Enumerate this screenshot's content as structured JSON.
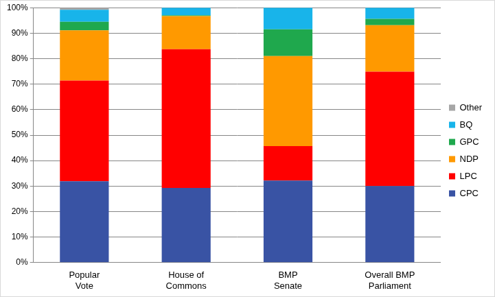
{
  "chart_data": {
    "type": "bar",
    "categories": [
      "Popular Vote",
      "House of Commons",
      "BMP Senate",
      "Overall BMP Parliament"
    ],
    "series": [
      {
        "name": "CPC",
        "color": "#3953A4",
        "values": [
          31.9,
          29.3,
          32.2,
          30.0
        ]
      },
      {
        "name": "LPC",
        "color": "#FF0000",
        "values": [
          39.5,
          54.4,
          13.5,
          44.9
        ]
      },
      {
        "name": "NDP",
        "color": "#FF9900",
        "values": [
          19.7,
          13.0,
          35.3,
          18.2
        ]
      },
      {
        "name": "GPC",
        "color": "#1FA84D",
        "values": [
          3.4,
          0.3,
          10.5,
          2.5
        ]
      },
      {
        "name": "BQ",
        "color": "#18B4EA",
        "values": [
          4.7,
          3.0,
          8.5,
          4.4
        ]
      },
      {
        "name": "Other",
        "color": "#A6A6A6",
        "values": [
          0.8,
          0,
          0,
          0
        ]
      }
    ],
    "ylim": [
      0,
      100
    ],
    "yticks": [
      {
        "value": 0,
        "label": "0%"
      },
      {
        "value": 10,
        "label": "10%"
      },
      {
        "value": 20,
        "label": "20%"
      },
      {
        "value": 30,
        "label": "30%"
      },
      {
        "value": 40,
        "label": "40%"
      },
      {
        "value": 50,
        "label": "50%"
      },
      {
        "value": 60,
        "label": "60%"
      },
      {
        "value": 70,
        "label": "70%"
      },
      {
        "value": 80,
        "label": "80%"
      },
      {
        "value": 90,
        "label": "90%"
      },
      {
        "value": 100,
        "label": "100%"
      }
    ],
    "grid": true,
    "legend": "right",
    "stacked": true
  }
}
